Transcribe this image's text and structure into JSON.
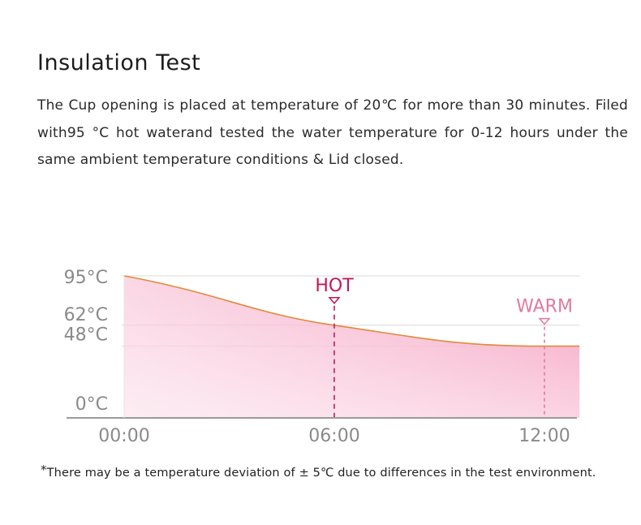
{
  "header": {
    "title": "Insulation Test",
    "description": "The Cup opening is placed at temperature of 20℃ for more than 30 minutes. Filed with95 °C hot waterand tested the water temperature for 0-12 hours under the same ambient temperature conditions & Lid closed."
  },
  "chart_data": {
    "type": "area",
    "x_ticks": [
      "00:00",
      "06:00",
      "12:00"
    ],
    "y_ticks": [
      "95°C",
      "62°C",
      "48°C",
      "0°C"
    ],
    "y_values": [
      95,
      62,
      48,
      0
    ],
    "points": [
      {
        "x": 0,
        "y": 95
      },
      {
        "x": 6,
        "y": 62
      },
      {
        "x": 12,
        "y": 48
      },
      {
        "x": 13,
        "y": 48
      }
    ],
    "xlim": [
      0,
      13
    ],
    "ylim": [
      0,
      95
    ],
    "annotations": [
      {
        "label": "HOT",
        "x": 6,
        "y": 62,
        "color": "#c2185b"
      },
      {
        "label": "WARM",
        "x": 12,
        "y": 48,
        "color": "#e07aa0"
      }
    ],
    "colors": {
      "line": "#e08a3c",
      "fill_top": "#f6a9c5",
      "fill_bottom": "#fdeaf1",
      "grid": "#d9d9d9",
      "axis": "#9a9a9a",
      "tick_text": "#8a8a8a"
    }
  },
  "footnote": {
    "star": "*",
    "text": "There may be a temperature deviation of ± 5℃  due to differences in the test environment."
  }
}
